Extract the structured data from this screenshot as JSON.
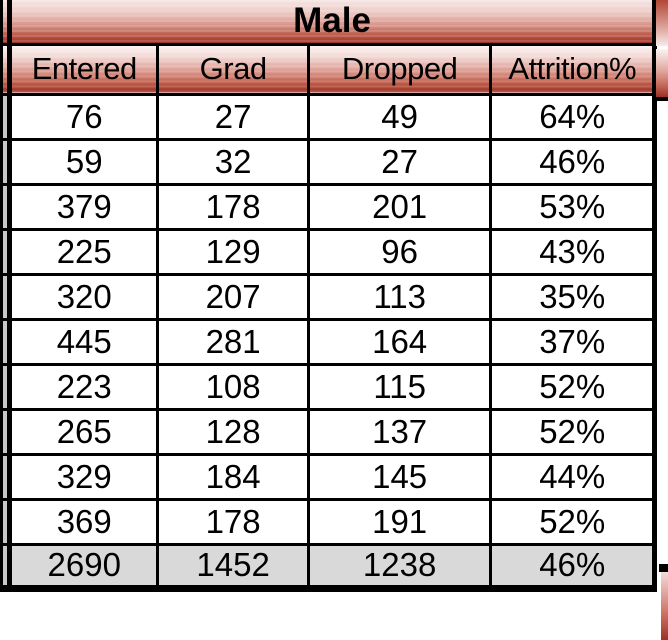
{
  "table": {
    "group_header": "Male",
    "columns": [
      "Entered",
      "Grad",
      "Dropped",
      "Attrition%"
    ],
    "rows": [
      [
        "76",
        "27",
        "49",
        "64%"
      ],
      [
        "59",
        "32",
        "27",
        "46%"
      ],
      [
        "379",
        "178",
        "201",
        "53%"
      ],
      [
        "225",
        "129",
        "96",
        "43%"
      ],
      [
        "320",
        "207",
        "113",
        "35%"
      ],
      [
        "445",
        "281",
        "164",
        "37%"
      ],
      [
        "223",
        "108",
        "115",
        "52%"
      ],
      [
        "265",
        "128",
        "137",
        "52%"
      ],
      [
        "329",
        "184",
        "145",
        "44%"
      ],
      [
        "369",
        "178",
        "191",
        "52%"
      ]
    ],
    "totals": [
      "2690",
      "1452",
      "1238",
      "46%"
    ]
  },
  "chart_data": {
    "type": "table",
    "title": "Male",
    "columns": [
      "Entered",
      "Grad",
      "Dropped",
      "Attrition%"
    ],
    "rows": [
      [
        76,
        27,
        49,
        "64%"
      ],
      [
        59,
        32,
        27,
        "46%"
      ],
      [
        379,
        178,
        201,
        "53%"
      ],
      [
        225,
        129,
        96,
        "43%"
      ],
      [
        320,
        207,
        113,
        "35%"
      ],
      [
        445,
        281,
        164,
        "37%"
      ],
      [
        223,
        108,
        115,
        "52%"
      ],
      [
        265,
        128,
        137,
        "52%"
      ],
      [
        329,
        184,
        145,
        "44%"
      ],
      [
        369,
        178,
        191,
        "52%"
      ]
    ],
    "totals": [
      2690,
      1452,
      1238,
      "46%"
    ],
    "layout_hints": "Group header 'Male' spans all 4 columns; header cells have red vertical gradient (white to dark red) with banding; data rows white; totals row light gray; thick black grid borders; image is cropped showing slivers of adjacent tables on left and right edges"
  },
  "colors": {
    "header_red_dark": "#9c3125",
    "header_red_mid": "#c96f5f",
    "header_light": "#fbf3f2",
    "totals_gray": "#d9d9d9",
    "sliver_gray": "#c8c8c8",
    "border": "#000000",
    "text": "#000000"
  }
}
